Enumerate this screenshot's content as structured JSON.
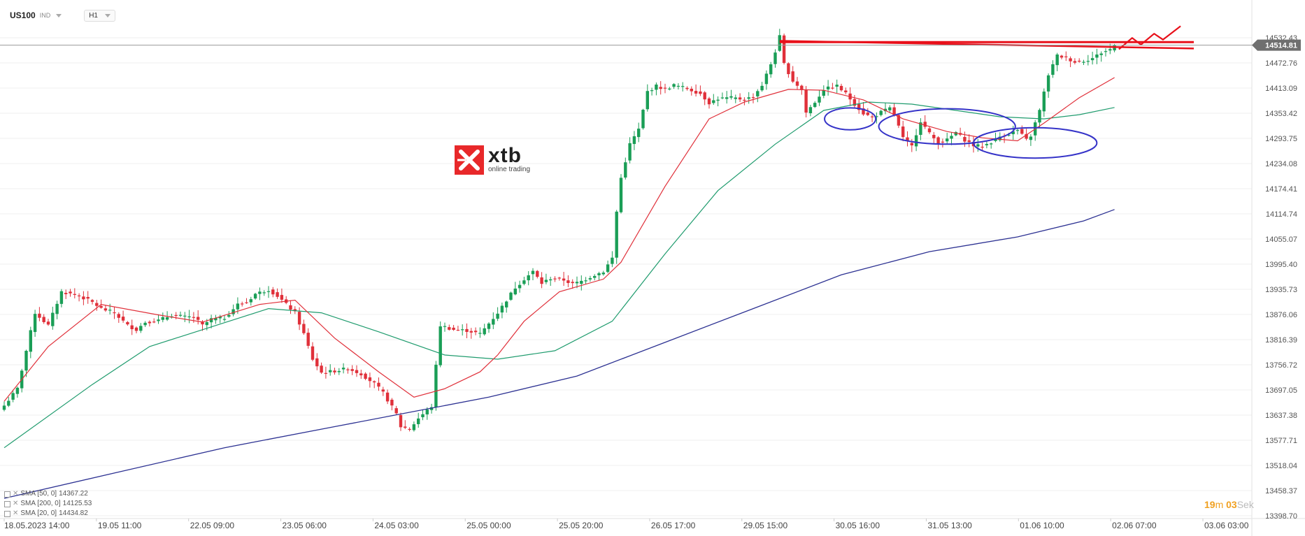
{
  "header": {
    "symbol": "US100",
    "instrument_type": "IND",
    "timeframe": "H1",
    "colors": {
      "background": "#ffffff",
      "grid": "#eeeeee",
      "text": "#333333"
    }
  },
  "watermark": {
    "brand": "xtb",
    "tagline": "online trading",
    "color": "#e8282a"
  },
  "timer": {
    "minutes": "19",
    "minutes_unit": "m",
    "seconds": "03",
    "seconds_unit": "Sek"
  },
  "chart_data": {
    "type": "candlestick",
    "ylim": [
      13398.7,
      14532.43
    ],
    "y_ticks": [
      "14532.43",
      "14472.76",
      "14413.09",
      "14353.42",
      "14293.75",
      "14234.08",
      "14174.41",
      "14114.74",
      "14055.07",
      "13995.40",
      "13935.73",
      "13876.06",
      "13816.39",
      "13756.72",
      "13697.05",
      "13637.38",
      "13577.71",
      "13518.04",
      "13458.37",
      "13398.70"
    ],
    "x_ticks": [
      "18.05.2023 14:00",
      "19.05 11:00",
      "22.05 09:00",
      "23.05 06:00",
      "24.05 03:00",
      "25.05 00:00",
      "25.05 20:00",
      "26.05 17:00",
      "29.05 15:00",
      "30.05 16:00",
      "31.05 13:00",
      "01.06 10:00",
      "02.06 07:00",
      "03.06 03:00"
    ],
    "current_price": "14514.81",
    "grid": true,
    "colors": {
      "up": "#1a9e56",
      "down": "#e0303a",
      "sma20": "#e0303a",
      "sma50": "#1e9b6d",
      "sma200": "#2c3192",
      "annotation_red": "#e8101a",
      "annotation_blue": "#3533c8",
      "price_line": "#9a9a9a",
      "price_label": "#6f6f6f"
    },
    "close_path": [
      [
        0,
        13660
      ],
      [
        3,
        13700
      ],
      [
        7,
        13880
      ],
      [
        10,
        13850
      ],
      [
        13,
        13930
      ],
      [
        17,
        13920
      ],
      [
        20,
        13905
      ],
      [
        22,
        13890
      ],
      [
        25,
        13880
      ],
      [
        28,
        13850
      ],
      [
        30,
        13840
      ],
      [
        32,
        13858
      ],
      [
        35,
        13862
      ],
      [
        38,
        13875
      ],
      [
        41,
        13870
      ],
      [
        43,
        13870
      ],
      [
        45,
        13850
      ],
      [
        47,
        13865
      ],
      [
        50,
        13868
      ],
      [
        53,
        13900
      ],
      [
        55,
        13905
      ],
      [
        57,
        13925
      ],
      [
        60,
        13935
      ],
      [
        62,
        13920
      ],
      [
        64,
        13900
      ],
      [
        66,
        13880
      ],
      [
        68,
        13830
      ],
      [
        70,
        13770
      ],
      [
        72,
        13738
      ],
      [
        75,
        13742
      ],
      [
        78,
        13748
      ],
      [
        81,
        13735
      ],
      [
        84,
        13712
      ],
      [
        86,
        13690
      ],
      [
        89,
        13640
      ],
      [
        90,
        13610
      ],
      [
        92,
        13604
      ],
      [
        94,
        13630
      ],
      [
        97,
        13658
      ],
      [
        99,
        13850
      ],
      [
        102,
        13840
      ],
      [
        105,
        13838
      ],
      [
        108,
        13830
      ],
      [
        110,
        13855
      ],
      [
        112,
        13880
      ],
      [
        114,
        13910
      ],
      [
        116,
        13940
      ],
      [
        118,
        13960
      ],
      [
        120,
        13978
      ],
      [
        122,
        13950
      ],
      [
        124,
        13962
      ],
      [
        127,
        13958
      ],
      [
        129,
        13948
      ],
      [
        131,
        13955
      ],
      [
        134,
        13970
      ],
      [
        136,
        13978
      ],
      [
        138,
        14010
      ],
      [
        139,
        14120
      ],
      [
        140,
        14200
      ],
      [
        142,
        14280
      ],
      [
        144,
        14315
      ],
      [
        146,
        14405
      ],
      [
        148,
        14418
      ],
      [
        150,
        14410
      ],
      [
        152,
        14420
      ],
      [
        155,
        14412
      ],
      [
        158,
        14400
      ],
      [
        160,
        14378
      ],
      [
        162,
        14388
      ],
      [
        165,
        14390
      ],
      [
        168,
        14386
      ],
      [
        170,
        14393
      ],
      [
        172,
        14420
      ],
      [
        174,
        14470
      ],
      [
        175,
        14500
      ],
      [
        176,
        14535
      ],
      [
        177,
        14470
      ],
      [
        179,
        14430
      ],
      [
        181,
        14410
      ],
      [
        182,
        14355
      ],
      [
        184,
        14380
      ],
      [
        186,
        14410
      ],
      [
        189,
        14418
      ],
      [
        191,
        14400
      ],
      [
        193,
        14375
      ],
      [
        195,
        14353
      ],
      [
        197,
        14343
      ],
      [
        199,
        14356
      ],
      [
        201,
        14365
      ],
      [
        202,
        14350
      ],
      [
        204,
        14294
      ],
      [
        206,
        14275
      ],
      [
        208,
        14335
      ],
      [
        210,
        14305
      ],
      [
        212,
        14283
      ],
      [
        214,
        14290
      ],
      [
        216,
        14308
      ],
      [
        218,
        14290
      ],
      [
        220,
        14277
      ],
      [
        222,
        14275
      ],
      [
        224,
        14285
      ],
      [
        226,
        14298
      ],
      [
        228,
        14305
      ],
      [
        230,
        14313
      ],
      [
        232,
        14290
      ],
      [
        233,
        14300
      ],
      [
        235,
        14360
      ],
      [
        237,
        14445
      ],
      [
        239,
        14490
      ],
      [
        241,
        14485
      ],
      [
        243,
        14475
      ],
      [
        245,
        14478
      ],
      [
        247,
        14484
      ],
      [
        249,
        14497
      ],
      [
        251,
        14505
      ],
      [
        252,
        14514
      ]
    ],
    "sma20": [
      [
        0,
        13670
      ],
      [
        10,
        13800
      ],
      [
        22,
        13900
      ],
      [
        35,
        13875
      ],
      [
        45,
        13858
      ],
      [
        58,
        13900
      ],
      [
        66,
        13910
      ],
      [
        75,
        13820
      ],
      [
        85,
        13740
      ],
      [
        93,
        13680
      ],
      [
        100,
        13700
      ],
      [
        108,
        13740
      ],
      [
        112,
        13780
      ],
      [
        118,
        13860
      ],
      [
        126,
        13930
      ],
      [
        136,
        13960
      ],
      [
        140,
        14000
      ],
      [
        150,
        14180
      ],
      [
        160,
        14340
      ],
      [
        168,
        14380
      ],
      [
        178,
        14410
      ],
      [
        186,
        14408
      ],
      [
        195,
        14385
      ],
      [
        204,
        14340
      ],
      [
        214,
        14310
      ],
      [
        222,
        14295
      ],
      [
        230,
        14288
      ],
      [
        236,
        14330
      ],
      [
        244,
        14390
      ],
      [
        252,
        14438
      ]
    ],
    "sma50": [
      [
        0,
        13560
      ],
      [
        20,
        13710
      ],
      [
        33,
        13800
      ],
      [
        45,
        13840
      ],
      [
        60,
        13890
      ],
      [
        72,
        13880
      ],
      [
        85,
        13835
      ],
      [
        100,
        13780
      ],
      [
        112,
        13770
      ],
      [
        125,
        13790
      ],
      [
        138,
        13860
      ],
      [
        150,
        14020
      ],
      [
        162,
        14170
      ],
      [
        175,
        14280
      ],
      [
        186,
        14360
      ],
      [
        196,
        14380
      ],
      [
        206,
        14375
      ],
      [
        216,
        14360
      ],
      [
        226,
        14345
      ],
      [
        236,
        14340
      ],
      [
        244,
        14350
      ],
      [
        252,
        14367
      ]
    ],
    "sma200": [
      [
        0,
        13440
      ],
      [
        25,
        13500
      ],
      [
        50,
        13560
      ],
      [
        75,
        13610
      ],
      [
        95,
        13650
      ],
      [
        110,
        13680
      ],
      [
        130,
        13730
      ],
      [
        150,
        13810
      ],
      [
        170,
        13890
      ],
      [
        190,
        13970
      ],
      [
        210,
        14025
      ],
      [
        230,
        14060
      ],
      [
        245,
        14098
      ],
      [
        252,
        14125
      ]
    ],
    "series_legend": [
      {
        "label": "SMA [50, 0]",
        "value": "14367.22"
      },
      {
        "label": "SMA [200, 0]",
        "value": "14125.53"
      },
      {
        "label": "SMA [20, 0]",
        "value": "14434.82"
      }
    ],
    "annotations": {
      "horizontal_line": {
        "y": 14522,
        "from_bar": 176,
        "to_bar": 270
      },
      "trend_line": {
        "from": [
          176,
          14525
        ],
        "to": [
          270,
          14507
        ]
      },
      "zigzag": [
        [
          253,
          14505
        ],
        [
          256,
          14532
        ],
        [
          258,
          14516
        ],
        [
          261,
          14542
        ],
        [
          263,
          14528
        ],
        [
          267,
          14560
        ]
      ],
      "ellipses": [
        {
          "center_bar": 192,
          "center_price": 14340,
          "half_bars": 5.8,
          "half_price": 26
        },
        {
          "center_bar": 214,
          "center_price": 14322,
          "half_bars": 15.5,
          "half_price": 42
        },
        {
          "center_bar": 234,
          "center_price": 14283,
          "half_bars": 14.0,
          "half_price": 36
        }
      ]
    }
  }
}
